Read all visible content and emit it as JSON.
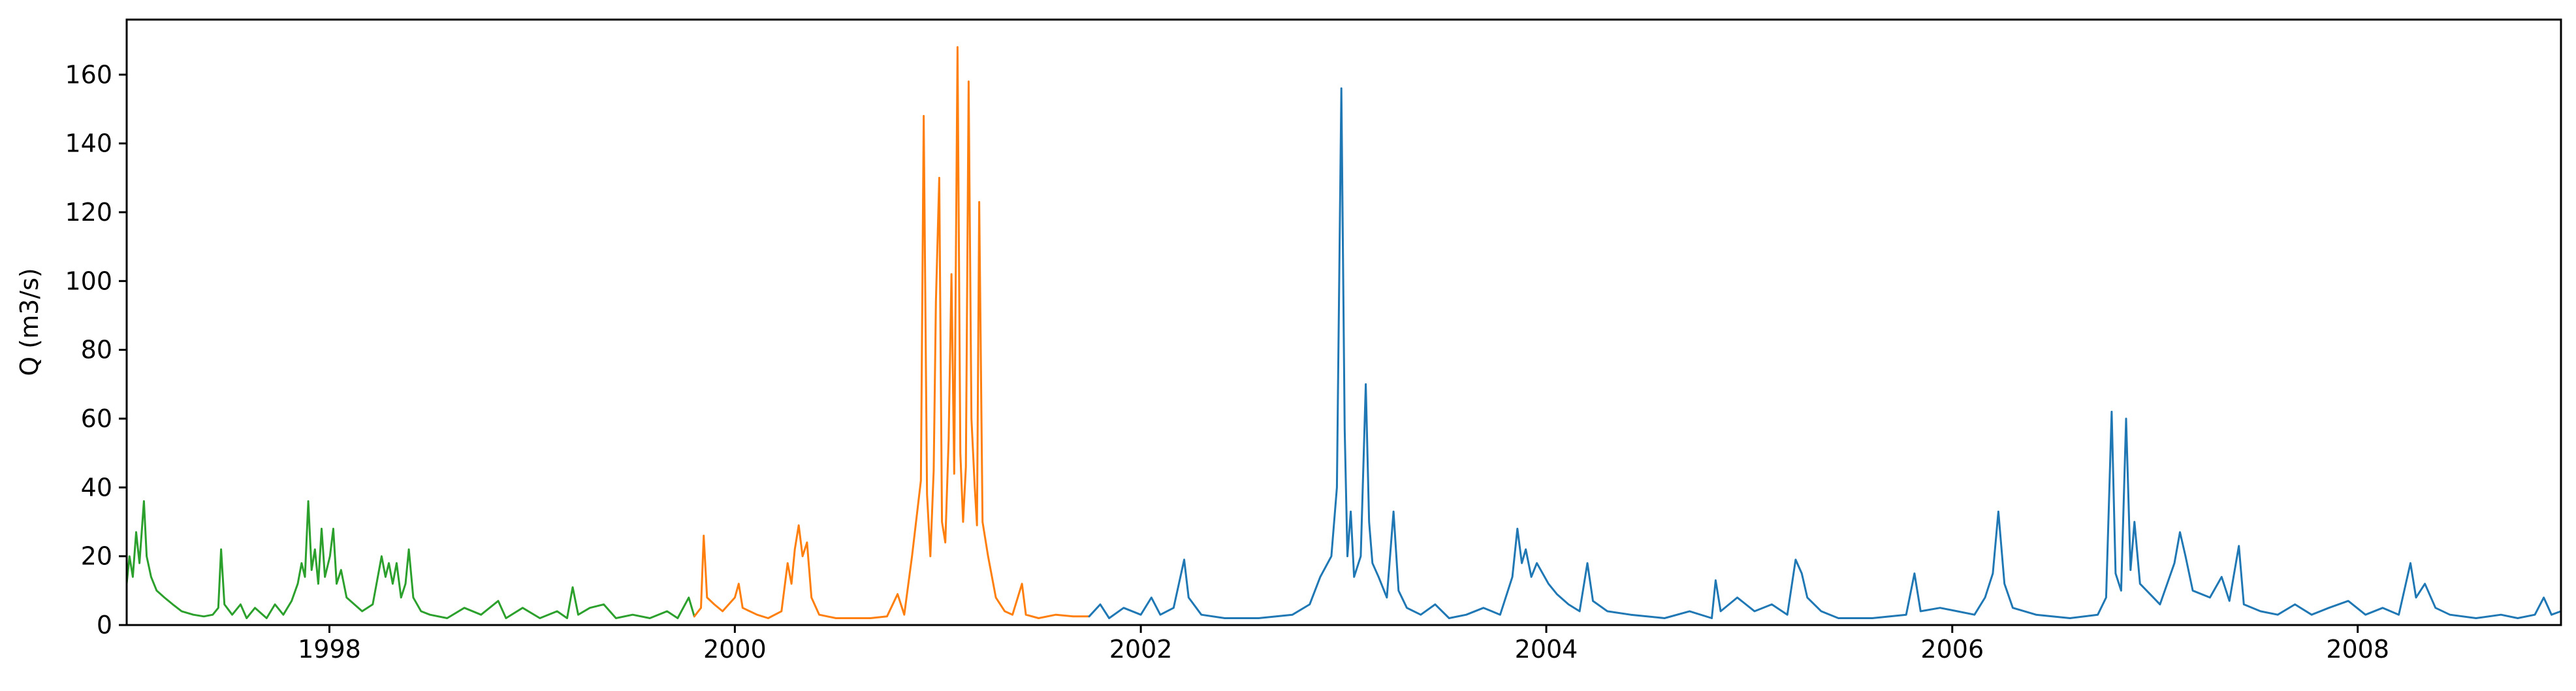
{
  "chart_data": {
    "type": "line",
    "title": "",
    "xlabel": "",
    "ylabel": "Q (m3/s)",
    "xlim": [
      "1997-01-01",
      "2009-01-01"
    ],
    "ylim": [
      0,
      176
    ],
    "grid": false,
    "legend": "none",
    "x_ticks": [
      {
        "date": "1998-01-01",
        "label": "1998"
      },
      {
        "date": "2000-01-01",
        "label": "2000"
      },
      {
        "date": "2002-01-01",
        "label": "2002"
      },
      {
        "date": "2004-01-01",
        "label": "2004"
      },
      {
        "date": "2006-01-01",
        "label": "2006"
      },
      {
        "date": "2008-01-01",
        "label": "2008"
      }
    ],
    "y_ticks": [
      {
        "value": 0,
        "label": "0"
      },
      {
        "value": 20,
        "label": "20"
      },
      {
        "value": 40,
        "label": "40"
      },
      {
        "value": 60,
        "label": "60"
      },
      {
        "value": 80,
        "label": "80"
      },
      {
        "value": 100,
        "label": "100"
      },
      {
        "value": 120,
        "label": "120"
      },
      {
        "value": 140,
        "label": "140"
      },
      {
        "value": 160,
        "label": "160"
      }
    ],
    "series": [
      {
        "color": "#2ca02c",
        "points": [
          [
            "1997-01-01",
            12
          ],
          [
            "1997-01-06",
            20
          ],
          [
            "1997-01-12",
            14
          ],
          [
            "1997-01-18",
            27
          ],
          [
            "1997-01-24",
            18
          ],
          [
            "1997-02-01",
            36
          ],
          [
            "1997-02-06",
            20
          ],
          [
            "1997-02-14",
            14
          ],
          [
            "1997-02-24",
            10
          ],
          [
            "1997-03-10",
            8
          ],
          [
            "1997-03-25",
            6
          ],
          [
            "1997-04-10",
            4
          ],
          [
            "1997-05-01",
            3
          ],
          [
            "1997-05-20",
            2.5
          ],
          [
            "1997-06-05",
            3
          ],
          [
            "1997-06-15",
            5
          ],
          [
            "1997-06-20",
            22
          ],
          [
            "1997-06-26",
            6
          ],
          [
            "1997-07-10",
            3
          ],
          [
            "1997-07-25",
            6
          ],
          [
            "1997-08-05",
            2
          ],
          [
            "1997-08-20",
            5
          ],
          [
            "1997-09-10",
            2
          ],
          [
            "1997-09-25",
            6
          ],
          [
            "1997-10-10",
            3
          ],
          [
            "1997-10-25",
            7
          ],
          [
            "1997-11-05",
            12
          ],
          [
            "1997-11-12",
            18
          ],
          [
            "1997-11-18",
            14
          ],
          [
            "1997-11-24",
            36
          ],
          [
            "1997-11-30",
            16
          ],
          [
            "1997-12-06",
            22
          ],
          [
            "1997-12-12",
            12
          ],
          [
            "1997-12-18",
            28
          ],
          [
            "1997-12-24",
            14
          ],
          [
            "1998-01-02",
            20
          ],
          [
            "1998-01-08",
            28
          ],
          [
            "1998-01-14",
            12
          ],
          [
            "1998-01-22",
            16
          ],
          [
            "1998-02-01",
            8
          ],
          [
            "1998-02-15",
            6
          ],
          [
            "1998-03-01",
            4
          ],
          [
            "1998-03-20",
            6
          ],
          [
            "1998-04-05",
            20
          ],
          [
            "1998-04-12",
            14
          ],
          [
            "1998-04-18",
            18
          ],
          [
            "1998-04-25",
            12
          ],
          [
            "1998-05-02",
            18
          ],
          [
            "1998-05-10",
            8
          ],
          [
            "1998-05-18",
            12
          ],
          [
            "1998-05-24",
            22
          ],
          [
            "1998-06-01",
            8
          ],
          [
            "1998-06-15",
            4
          ],
          [
            "1998-07-01",
            3
          ],
          [
            "1998-08-01",
            2
          ],
          [
            "1998-09-01",
            5
          ],
          [
            "1998-10-01",
            3
          ],
          [
            "1998-11-01",
            7
          ],
          [
            "1998-11-15",
            2
          ],
          [
            "1998-12-15",
            5
          ],
          [
            "1999-01-15",
            2
          ],
          [
            "1999-02-15",
            4
          ],
          [
            "1999-03-05",
            2
          ],
          [
            "1999-03-15",
            11
          ],
          [
            "1999-03-25",
            3
          ],
          [
            "1999-04-15",
            5
          ],
          [
            "1999-05-10",
            6
          ],
          [
            "1999-06-01",
            2
          ],
          [
            "1999-07-01",
            3
          ],
          [
            "1999-08-01",
            2
          ],
          [
            "1999-09-01",
            4
          ],
          [
            "1999-09-20",
            2
          ],
          [
            "1999-10-10",
            8
          ],
          [
            "1999-10-20",
            2.5
          ]
        ]
      },
      {
        "color": "#ff7f0e",
        "points": [
          [
            "1999-10-20",
            2.5
          ],
          [
            "1999-11-01",
            5
          ],
          [
            "1999-11-06",
            26
          ],
          [
            "1999-11-12",
            8
          ],
          [
            "1999-11-25",
            6
          ],
          [
            "1999-12-10",
            4
          ],
          [
            "2000-01-01",
            8
          ],
          [
            "2000-01-08",
            12
          ],
          [
            "2000-01-15",
            5
          ],
          [
            "2000-02-10",
            3
          ],
          [
            "2000-03-01",
            2
          ],
          [
            "2000-03-25",
            4
          ],
          [
            "2000-04-05",
            18
          ],
          [
            "2000-04-12",
            12
          ],
          [
            "2000-04-18",
            22
          ],
          [
            "2000-04-25",
            29
          ],
          [
            "2000-05-02",
            20
          ],
          [
            "2000-05-10",
            24
          ],
          [
            "2000-05-18",
            8
          ],
          [
            "2000-06-01",
            3
          ],
          [
            "2000-07-01",
            2
          ],
          [
            "2000-08-01",
            2
          ],
          [
            "2000-09-01",
            2
          ],
          [
            "2000-10-01",
            2.5
          ],
          [
            "2000-10-20",
            9
          ],
          [
            "2000-11-01",
            3
          ],
          [
            "2000-11-15",
            20
          ],
          [
            "2000-12-01",
            42
          ],
          [
            "2000-12-06",
            148
          ],
          [
            "2000-12-12",
            38
          ],
          [
            "2000-12-18",
            20
          ],
          [
            "2000-12-24",
            45
          ],
          [
            "2000-12-28",
            94
          ],
          [
            "2001-01-03",
            130
          ],
          [
            "2001-01-08",
            30
          ],
          [
            "2001-01-14",
            24
          ],
          [
            "2001-01-20",
            54
          ],
          [
            "2001-01-25",
            102
          ],
          [
            "2001-01-30",
            44
          ],
          [
            "2001-02-05",
            168
          ],
          [
            "2001-02-10",
            50
          ],
          [
            "2001-02-15",
            30
          ],
          [
            "2001-02-20",
            46
          ],
          [
            "2001-02-25",
            158
          ],
          [
            "2001-03-02",
            60
          ],
          [
            "2001-03-08",
            40
          ],
          [
            "2001-03-12",
            29
          ],
          [
            "2001-03-16",
            123
          ],
          [
            "2001-03-22",
            30
          ],
          [
            "2001-04-01",
            20
          ],
          [
            "2001-04-15",
            8
          ],
          [
            "2001-05-01",
            4
          ],
          [
            "2001-05-15",
            3
          ],
          [
            "2001-06-01",
            12
          ],
          [
            "2001-06-08",
            3
          ],
          [
            "2001-07-01",
            2
          ],
          [
            "2001-08-01",
            3
          ],
          [
            "2001-09-01",
            2.5
          ],
          [
            "2001-09-30",
            2.5
          ]
        ]
      },
      {
        "color": "#1f77b4",
        "points": [
          [
            "2001-09-30",
            2.5
          ],
          [
            "2001-10-20",
            6
          ],
          [
            "2001-11-05",
            2
          ],
          [
            "2001-12-01",
            5
          ],
          [
            "2002-01-01",
            3
          ],
          [
            "2002-01-20",
            8
          ],
          [
            "2002-02-05",
            3
          ],
          [
            "2002-03-01",
            5
          ],
          [
            "2002-03-20",
            19
          ],
          [
            "2002-03-28",
            8
          ],
          [
            "2002-04-20",
            3
          ],
          [
            "2002-06-01",
            2
          ],
          [
            "2002-08-01",
            2
          ],
          [
            "2002-10-01",
            3
          ],
          [
            "2002-11-01",
            6
          ],
          [
            "2002-11-20",
            14
          ],
          [
            "2002-12-10",
            20
          ],
          [
            "2002-12-20",
            40
          ],
          [
            "2002-12-28",
            156
          ],
          [
            "2003-01-03",
            57
          ],
          [
            "2003-01-08",
            20
          ],
          [
            "2003-01-14",
            33
          ],
          [
            "2003-01-20",
            14
          ],
          [
            "2003-02-01",
            20
          ],
          [
            "2003-02-10",
            70
          ],
          [
            "2003-02-16",
            30
          ],
          [
            "2003-02-22",
            18
          ],
          [
            "2003-03-05",
            14
          ],
          [
            "2003-03-20",
            8
          ],
          [
            "2003-04-01",
            33
          ],
          [
            "2003-04-10",
            10
          ],
          [
            "2003-04-25",
            5
          ],
          [
            "2003-05-20",
            3
          ],
          [
            "2003-06-15",
            6
          ],
          [
            "2003-07-10",
            2
          ],
          [
            "2003-08-10",
            3
          ],
          [
            "2003-09-10",
            5
          ],
          [
            "2003-10-10",
            3
          ],
          [
            "2003-11-01",
            14
          ],
          [
            "2003-11-10",
            28
          ],
          [
            "2003-11-18",
            18
          ],
          [
            "2003-11-25",
            22
          ],
          [
            "2003-12-05",
            14
          ],
          [
            "2003-12-15",
            18
          ],
          [
            "2004-01-05",
            12
          ],
          [
            "2004-01-20",
            9
          ],
          [
            "2004-02-10",
            6
          ],
          [
            "2004-03-01",
            4
          ],
          [
            "2004-03-15",
            18
          ],
          [
            "2004-03-25",
            7
          ],
          [
            "2004-04-20",
            4
          ],
          [
            "2004-06-01",
            3
          ],
          [
            "2004-08-01",
            2
          ],
          [
            "2004-09-15",
            4
          ],
          [
            "2004-10-25",
            2
          ],
          [
            "2004-11-01",
            13
          ],
          [
            "2004-11-10",
            4
          ],
          [
            "2004-12-10",
            8
          ],
          [
            "2005-01-10",
            4
          ],
          [
            "2005-02-10",
            6
          ],
          [
            "2005-03-10",
            3
          ],
          [
            "2005-03-25",
            19
          ],
          [
            "2005-04-05",
            15
          ],
          [
            "2005-04-15",
            8
          ],
          [
            "2005-05-10",
            4
          ],
          [
            "2005-06-10",
            2
          ],
          [
            "2005-08-10",
            2
          ],
          [
            "2005-10-10",
            3
          ],
          [
            "2005-10-25",
            15
          ],
          [
            "2005-11-05",
            4
          ],
          [
            "2005-12-10",
            5
          ],
          [
            "2006-01-10",
            4
          ],
          [
            "2006-02-10",
            3
          ],
          [
            "2006-03-01",
            8
          ],
          [
            "2006-03-15",
            15
          ],
          [
            "2006-03-25",
            33
          ],
          [
            "2006-04-05",
            12
          ],
          [
            "2006-04-20",
            5
          ],
          [
            "2006-06-01",
            3
          ],
          [
            "2006-08-01",
            2
          ],
          [
            "2006-09-20",
            3
          ],
          [
            "2006-10-05",
            8
          ],
          [
            "2006-10-15",
            62
          ],
          [
            "2006-10-22",
            15
          ],
          [
            "2006-11-01",
            10
          ],
          [
            "2006-11-10",
            60
          ],
          [
            "2006-11-18",
            16
          ],
          [
            "2006-11-25",
            30
          ],
          [
            "2006-12-05",
            12
          ],
          [
            "2007-01-10",
            6
          ],
          [
            "2007-02-05",
            18
          ],
          [
            "2007-02-15",
            27
          ],
          [
            "2007-02-25",
            20
          ],
          [
            "2007-03-10",
            10
          ],
          [
            "2007-04-10",
            8
          ],
          [
            "2007-05-01",
            14
          ],
          [
            "2007-05-15",
            7
          ],
          [
            "2007-06-01",
            23
          ],
          [
            "2007-06-10",
            6
          ],
          [
            "2007-07-10",
            4
          ],
          [
            "2007-08-10",
            3
          ],
          [
            "2007-09-10",
            6
          ],
          [
            "2007-10-10",
            3
          ],
          [
            "2007-11-10",
            5
          ],
          [
            "2007-12-15",
            7
          ],
          [
            "2008-01-15",
            3
          ],
          [
            "2008-02-15",
            5
          ],
          [
            "2008-03-15",
            3
          ],
          [
            "2008-04-05",
            18
          ],
          [
            "2008-04-15",
            8
          ],
          [
            "2008-05-01",
            12
          ],
          [
            "2008-05-20",
            5
          ],
          [
            "2008-06-15",
            3
          ],
          [
            "2008-08-01",
            2
          ],
          [
            "2008-09-15",
            3
          ],
          [
            "2008-10-15",
            2
          ],
          [
            "2008-11-15",
            3
          ],
          [
            "2008-12-01",
            8
          ],
          [
            "2008-12-15",
            3
          ],
          [
            "2009-01-01",
            4
          ]
        ]
      }
    ]
  }
}
